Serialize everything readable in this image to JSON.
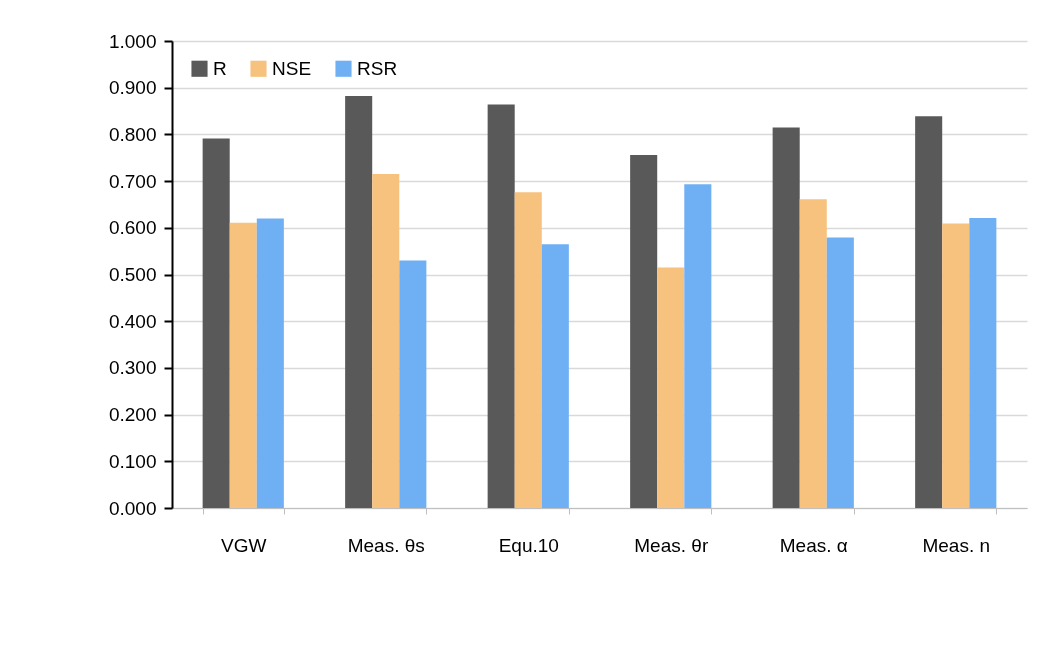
{
  "chart_data": {
    "type": "bar",
    "categories": [
      "VGW",
      "Meas. θs",
      "Equ.10",
      "Meas. θr",
      "Meas. α",
      "Meas. n"
    ],
    "series": [
      {
        "name": "R",
        "color": "#595959",
        "values": [
          0.791,
          0.882,
          0.864,
          0.756,
          0.815,
          0.839
        ]
      },
      {
        "name": "NSE",
        "color": "#f6c27e",
        "values": [
          0.611,
          0.715,
          0.676,
          0.515,
          0.661,
          0.609
        ]
      },
      {
        "name": "RSR",
        "color": "#6fb0f5",
        "values": [
          0.62,
          0.53,
          0.565,
          0.693,
          0.579,
          0.621
        ]
      }
    ],
    "ylim": [
      0,
      1
    ],
    "yticks": [
      {
        "value": 0,
        "label": "0.000"
      },
      {
        "value": 0.1,
        "label": "0.100"
      },
      {
        "value": 0.2,
        "label": "0.200"
      },
      {
        "value": 0.3,
        "label": "0.300"
      },
      {
        "value": 0.4,
        "label": "0.400"
      },
      {
        "value": 0.5,
        "label": "0.500"
      },
      {
        "value": 0.6,
        "label": "0.600"
      },
      {
        "value": 0.7,
        "label": "0.700"
      },
      {
        "value": 0.8,
        "label": "0.800"
      },
      {
        "value": 0.9,
        "label": "0.900"
      },
      {
        "value": 1,
        "label": "1.000"
      }
    ],
    "grid": "y",
    "legend": "top left"
  }
}
